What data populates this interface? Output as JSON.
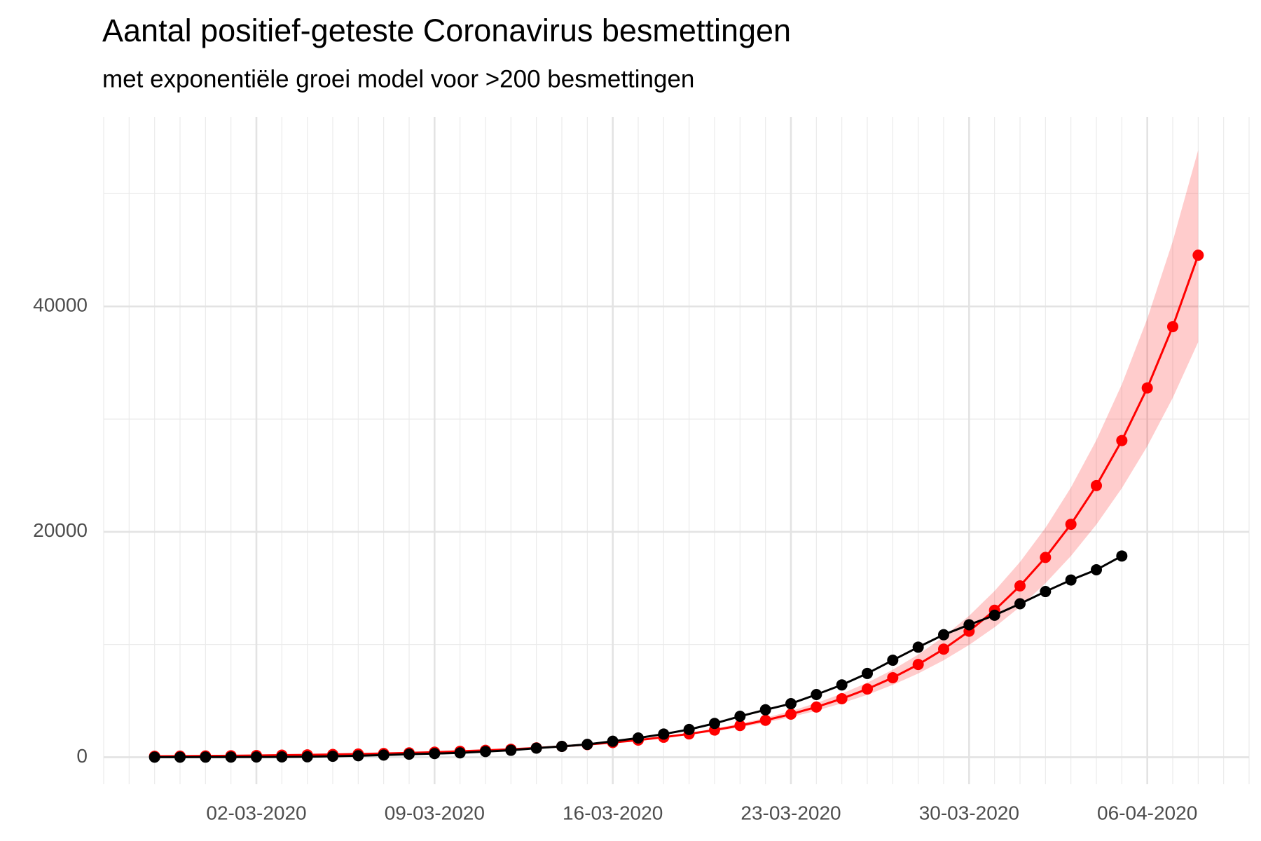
{
  "chart_data": {
    "type": "line",
    "title": "Aantal positief-geteste Coronavirus besmettingen",
    "subtitle": "met exponentiële groei model voor >200 besmettingen",
    "xlim": [
      "25-02-2020",
      "10-04-2020"
    ],
    "xticks": [
      "02-03-2020",
      "09-03-2020",
      "16-03-2020",
      "23-03-2020",
      "30-03-2020",
      "06-04-2020"
    ],
    "ylim": [
      -2400,
      56800
    ],
    "yticks": [
      0,
      20000,
      40000
    ],
    "grid": true,
    "series": [
      {
        "color": "#ff0000",
        "ribbon_color": "#ff0000",
        "x": [
          "27-02-2020",
          "28-02-2020",
          "29-02-2020",
          "01-03-2020",
          "02-03-2020",
          "03-03-2020",
          "04-03-2020",
          "05-03-2020",
          "06-03-2020",
          "07-03-2020",
          "08-03-2020",
          "09-03-2020",
          "10-03-2020",
          "11-03-2020",
          "12-03-2020",
          "13-03-2020",
          "14-03-2020",
          "15-03-2020",
          "16-03-2020",
          "17-03-2020",
          "18-03-2020",
          "19-03-2020",
          "20-03-2020",
          "21-03-2020",
          "22-03-2020",
          "23-03-2020",
          "24-03-2020",
          "25-03-2020",
          "26-03-2020",
          "27-03-2020",
          "28-03-2020",
          "29-03-2020",
          "30-03-2020",
          "31-03-2020",
          "01-04-2020",
          "02-04-2020",
          "03-04-2020",
          "04-04-2020",
          "05-04-2020",
          "06-04-2020",
          "07-04-2020",
          "08-04-2020"
        ],
        "values": [
          82,
          96,
          112,
          130,
          152,
          177,
          207,
          241,
          281,
          327,
          382,
          445,
          519,
          605,
          705,
          822,
          959,
          1118,
          1303,
          1520,
          1772,
          2066,
          2408,
          2808,
          3274,
          3817,
          4450,
          5189,
          6050,
          7054,
          8224,
          9589,
          11180,
          13036,
          15200,
          17723,
          20666,
          24097,
          28097,
          32762,
          38201,
          44543
        ],
        "upper": [
          82,
          96,
          112,
          130,
          152,
          178,
          208,
          242,
          283,
          330,
          386,
          451,
          528,
          617,
          721,
          843,
          987,
          1155,
          1352,
          1583,
          1854,
          2172,
          2543,
          2981,
          3494,
          4096,
          4803,
          5635,
          6610,
          7757,
          9104,
          10689,
          12551,
          14744,
          17321,
          20354,
          23924,
          28129,
          33078,
          38906,
          45773,
          53865
        ],
        "lower": [
          82,
          96,
          112,
          130,
          152,
          177,
          206,
          240,
          279,
          324,
          378,
          439,
          511,
          594,
          690,
          801,
          932,
          1082,
          1256,
          1459,
          1694,
          1966,
          2280,
          2645,
          3068,
          3557,
          4123,
          4779,
          5537,
          6415,
          7429,
          8602,
          9959,
          11526,
          13339,
          15432,
          17852,
          20643,
          23866,
          27588,
          31882,
          36835
        ]
      },
      {
        "color": "#000000",
        "x": [
          "27-02-2020",
          "28-02-2020",
          "29-02-2020",
          "01-03-2020",
          "02-03-2020",
          "03-03-2020",
          "04-03-2020",
          "05-03-2020",
          "06-03-2020",
          "07-03-2020",
          "08-03-2020",
          "09-03-2020",
          "10-03-2020",
          "11-03-2020",
          "12-03-2020",
          "13-03-2020",
          "14-03-2020",
          "15-03-2020",
          "16-03-2020",
          "17-03-2020",
          "18-03-2020",
          "19-03-2020",
          "20-03-2020",
          "21-03-2020",
          "22-03-2020",
          "23-03-2020",
          "24-03-2020",
          "25-03-2020",
          "26-03-2020",
          "27-03-2020",
          "28-03-2020",
          "29-03-2020",
          "30-03-2020",
          "31-03-2020",
          "01-04-2020",
          "02-04-2020",
          "03-04-2020",
          "04-04-2020",
          "05-04-2020"
        ],
        "values": [
          1,
          2,
          6,
          10,
          18,
          24,
          38,
          82,
          128,
          188,
          265,
          321,
          382,
          503,
          614,
          804,
          959,
          1135,
          1413,
          1705,
          2051,
          2460,
          2994,
          3631,
          4204,
          4749,
          5560,
          6412,
          7431,
          8603,
          9762,
          10866,
          11750,
          12595,
          13614,
          14697,
          15723,
          16627,
          17851
        ]
      }
    ]
  }
}
